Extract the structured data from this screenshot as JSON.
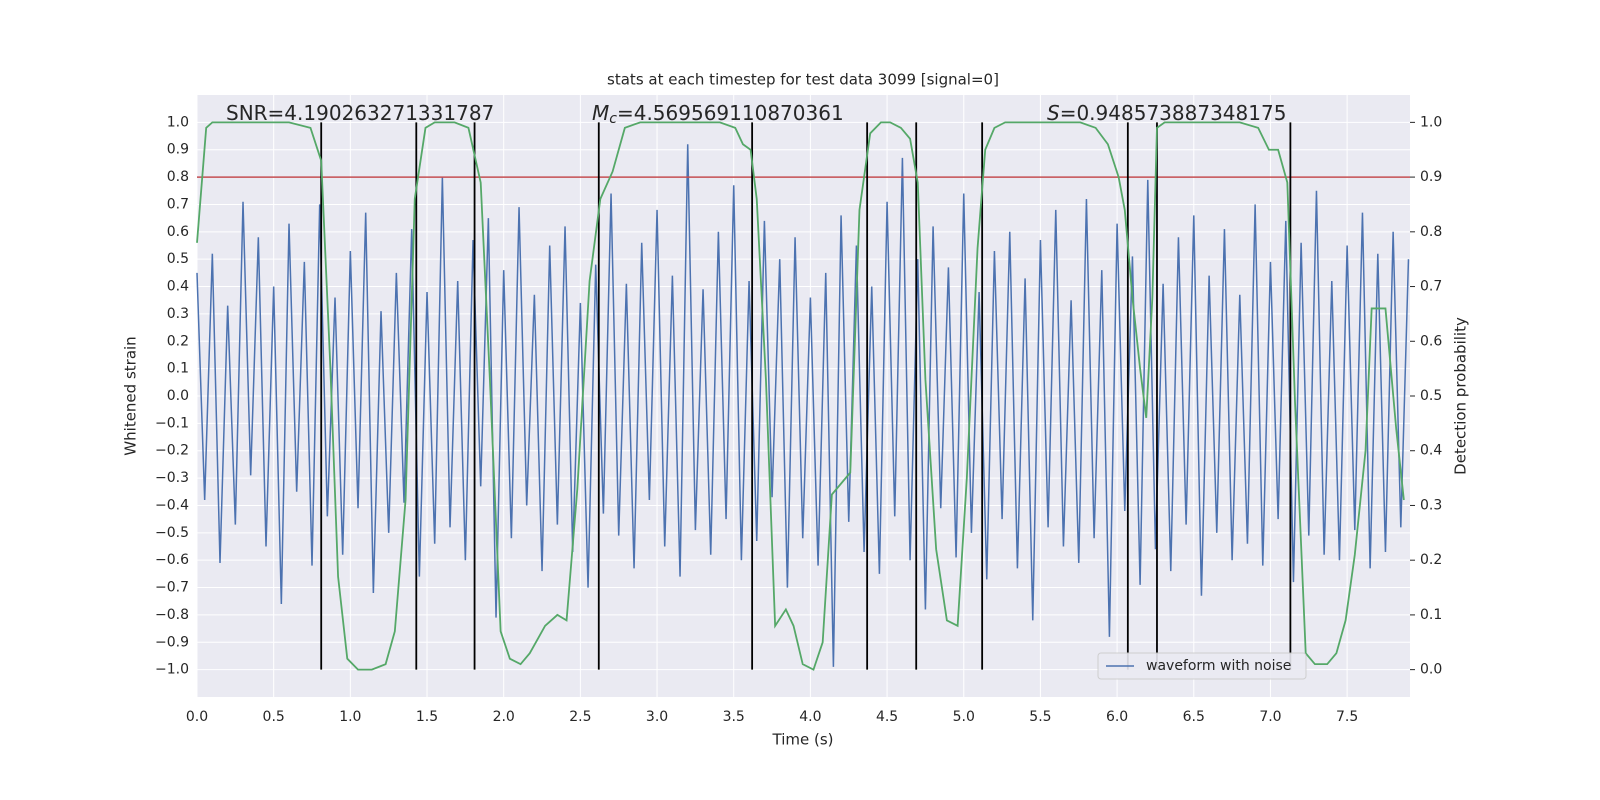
{
  "chart_data": {
    "type": "line",
    "title": "stats at each timestep for test data 3099 [signal=0]",
    "xlabel": "Time (s)",
    "ylabel": "Whitened strain",
    "y2label": "Detection probability",
    "xlim": [
      0,
      7.91
    ],
    "ylim": [
      -1.1,
      1.1
    ],
    "y2lim": [
      -0.05,
      1.05
    ],
    "xticks": [
      {
        "value": 0,
        "label": "0.0"
      },
      0.5,
      {
        "value": 1,
        "label": "1.0"
      },
      1.5,
      {
        "value": 2,
        "label": "2.0"
      },
      2.5,
      {
        "value": 3,
        "label": "3.0"
      },
      3.5,
      {
        "value": 4,
        "label": "4.0"
      },
      4.5,
      {
        "value": 5,
        "label": "5.0"
      },
      5.5,
      {
        "value": 6,
        "label": "6.0"
      },
      6.5,
      {
        "value": 7,
        "label": "7.0"
      },
      7.5
    ],
    "yticks": [
      {
        "value": -1,
        "label": "−1.0"
      },
      {
        "value": -0.9,
        "label": "−0.9"
      },
      {
        "value": -0.8,
        "label": "−0.8"
      },
      {
        "value": -0.7,
        "label": "−0.7"
      },
      {
        "value": -0.6,
        "label": "−0.6"
      },
      {
        "value": -0.5,
        "label": "−0.5"
      },
      {
        "value": -0.4,
        "label": "−0.4"
      },
      {
        "value": -0.3,
        "label": "−0.3"
      },
      {
        "value": -0.2,
        "label": "−0.2"
      },
      {
        "value": -0.1,
        "label": "−0.1"
      },
      {
        "value": 0,
        "label": "0.0"
      },
      0.1,
      0.2,
      0.3,
      0.4,
      0.5,
      0.6,
      0.7,
      0.8,
      0.9,
      {
        "value": 1,
        "label": "1.0"
      }
    ],
    "y2ticks": [
      {
        "value": 0,
        "label": "0.0"
      },
      0.1,
      0.2,
      0.3,
      0.4,
      0.5,
      0.6,
      0.7,
      0.8,
      0.9,
      {
        "value": 1,
        "label": "1.0"
      }
    ],
    "grid": true,
    "legend": "lower right",
    "annotations": [
      {
        "text": "SNR=4.190263271331787"
      },
      {
        "symbol": "M",
        "subscript": "c",
        "text": "=4.569569110870361"
      },
      {
        "symbol": "S",
        "text": "=0.948573887348175"
      }
    ],
    "hline": {
      "value": 0.8,
      "color": "#c44e52"
    },
    "vlines": {
      "x": [
        0.81,
        1.43,
        1.81,
        2.62,
        3.62,
        4.37,
        4.69,
        5.12,
        6.07,
        6.26,
        7.13
      ],
      "range": [
        -1,
        1
      ],
      "color": "#000000"
    },
    "series": [
      {
        "name": "waveform with noise",
        "color": "#4c72b0",
        "x": [
          0,
          0.05,
          0.1,
          0.15,
          0.2,
          0.25,
          0.3,
          0.35,
          0.4,
          0.45,
          0.5,
          0.55,
          0.6,
          0.65,
          0.7,
          0.75,
          0.8,
          0.85,
          0.9,
          0.95,
          1,
          1.05,
          1.1,
          1.15,
          1.2,
          1.25,
          1.3,
          1.35,
          1.4,
          1.45,
          1.5,
          1.55,
          1.6,
          1.65,
          1.7,
          1.75,
          1.8,
          1.85,
          1.9,
          1.95,
          2,
          2.05,
          2.1,
          2.15,
          2.2,
          2.25,
          2.3,
          2.35,
          2.4,
          2.45,
          2.5,
          2.55,
          2.6,
          2.65,
          2.7,
          2.75,
          2.8,
          2.85,
          2.9,
          2.95,
          3,
          3.05,
          3.1,
          3.15,
          3.2,
          3.25,
          3.3,
          3.35,
          3.4,
          3.45,
          3.5,
          3.55,
          3.6,
          3.65,
          3.7,
          3.75,
          3.8,
          3.85,
          3.9,
          3.95,
          4,
          4.05,
          4.1,
          4.15,
          4.2,
          4.25,
          4.3,
          4.35,
          4.4,
          4.45,
          4.5,
          4.55,
          4.6,
          4.65,
          4.7,
          4.75,
          4.8,
          4.85,
          4.9,
          4.95,
          5,
          5.05,
          5.1,
          5.15,
          5.2,
          5.25,
          5.3,
          5.35,
          5.4,
          5.45,
          5.5,
          5.55,
          5.6,
          5.65,
          5.7,
          5.75,
          5.8,
          5.85,
          5.9,
          5.95,
          6,
          6.05,
          6.1,
          6.15,
          6.2,
          6.25,
          6.3,
          6.35,
          6.4,
          6.45,
          6.5,
          6.55,
          6.6,
          6.65,
          6.7,
          6.75,
          6.8,
          6.85,
          6.9,
          6.95,
          7,
          7.05,
          7.1,
          7.15,
          7.2,
          7.25,
          7.3,
          7.35,
          7.4,
          7.45,
          7.5,
          7.55,
          7.6,
          7.65,
          7.7,
          7.75,
          7.8,
          7.85,
          7.9
        ],
        "values": [
          0.45,
          -0.38,
          0.52,
          -0.61,
          0.33,
          -0.47,
          0.71,
          -0.29,
          0.58,
          -0.55,
          0.4,
          -0.76,
          0.63,
          -0.35,
          0.49,
          -0.62,
          0.7,
          -0.44,
          0.36,
          -0.58,
          0.53,
          -0.41,
          0.67,
          -0.72,
          0.31,
          -0.5,
          0.45,
          -0.39,
          0.61,
          -0.66,
          0.38,
          -0.54,
          0.8,
          -0.48,
          0.42,
          -0.6,
          0.57,
          -0.33,
          0.65,
          -0.81,
          0.46,
          -0.52,
          0.69,
          -0.4,
          0.37,
          -0.64,
          0.55,
          -0.47,
          0.62,
          -0.57,
          0.34,
          -0.7,
          0.48,
          -0.43,
          0.74,
          -0.51,
          0.41,
          -0.63,
          0.56,
          -0.38,
          0.68,
          -0.55,
          0.44,
          -0.66,
          0.92,
          -0.49,
          0.39,
          -0.58,
          0.6,
          -0.45,
          0.77,
          -0.6,
          0.42,
          -0.53,
          0.64,
          -0.37,
          0.5,
          -0.7,
          0.58,
          -0.52,
          0.36,
          -0.62,
          0.45,
          -0.99,
          0.66,
          -0.46,
          0.55,
          -0.57,
          0.4,
          -0.65,
          0.71,
          -0.44,
          0.87,
          -0.6,
          0.5,
          -0.78,
          0.62,
          -0.41,
          0.47,
          -0.59,
          0.74,
          -0.5,
          0.38,
          -0.67,
          0.53,
          -0.45,
          0.6,
          -0.63,
          0.43,
          -0.82,
          0.57,
          -0.48,
          0.68,
          -0.55,
          0.35,
          -0.61,
          0.72,
          -0.52,
          0.46,
          -0.88,
          0.63,
          -0.42,
          0.51,
          -0.69,
          0.79,
          -0.56,
          0.41,
          -0.64,
          0.58,
          -0.47,
          0.66,
          -0.73,
          0.44,
          -0.5,
          0.61,
          -0.6,
          0.37,
          -0.54,
          0.7,
          -0.62,
          0.49,
          -0.45,
          0.64,
          -0.68,
          0.56,
          -0.51,
          0.75,
          -0.58,
          0.42,
          -0.6,
          0.55,
          -0.49,
          0.67,
          -0.63,
          0.52,
          -0.57,
          0.6,
          -0.48,
          0.5
        ]
      },
      {
        "color": "#55a868",
        "axis": "y2",
        "x": [
          0,
          0.06,
          0.1,
          0.6,
          0.74,
          0.81,
          0.87,
          0.92,
          0.98,
          1.05,
          1.14,
          1.23,
          1.29,
          1.36,
          1.42,
          1.49,
          1.55,
          1.68,
          1.77,
          1.85,
          1.91,
          1.98,
          2.04,
          2.11,
          2.17,
          2.27,
          2.35,
          2.41,
          2.48,
          2.56,
          2.63,
          2.71,
          2.79,
          2.89,
          3.41,
          3.51,
          3.56,
          3.61,
          3.65,
          3.71,
          3.77,
          3.84,
          3.89,
          3.95,
          4.02,
          4.08,
          4.14,
          4.26,
          4.32,
          4.39,
          4.46,
          4.52,
          4.59,
          4.65,
          4.7,
          4.75,
          4.82,
          4.89,
          4.96,
          5.02,
          5.09,
          5.14,
          5.2,
          5.27,
          5.76,
          5.86,
          5.94,
          6.01,
          6.05,
          6.1,
          6.15,
          6.19,
          6.23,
          6.26,
          6.31,
          6.8,
          6.92,
          6.99,
          7.05,
          7.11,
          7.16,
          7.23,
          7.29,
          7.37,
          7.43,
          7.49,
          7.55,
          7.62,
          7.66,
          7.75,
          7.82,
          7.87
        ],
        "values": [
          0.78,
          0.99,
          1,
          1,
          0.99,
          0.93,
          0.55,
          0.17,
          0.02,
          0,
          0,
          0.01,
          0.07,
          0.31,
          0.86,
          0.99,
          1,
          1,
          0.99,
          0.89,
          0.53,
          0.07,
          0.02,
          0.01,
          0.03,
          0.08,
          0.1,
          0.09,
          0.33,
          0.71,
          0.86,
          0.91,
          0.99,
          1,
          1,
          0.99,
          0.96,
          0.95,
          0.86,
          0.53,
          0.08,
          0.11,
          0.08,
          0.01,
          0,
          0.05,
          0.32,
          0.36,
          0.84,
          0.98,
          1,
          1,
          0.99,
          0.97,
          0.89,
          0.53,
          0.22,
          0.09,
          0.08,
          0.35,
          0.77,
          0.95,
          0.99,
          1,
          1,
          0.99,
          0.96,
          0.9,
          0.84,
          0.68,
          0.55,
          0.46,
          0.68,
          0.99,
          1,
          1,
          0.99,
          0.95,
          0.95,
          0.89,
          0.49,
          0.03,
          0.01,
          0.01,
          0.03,
          0.09,
          0.21,
          0.4,
          0.66,
          0.66,
          0.44,
          0.31
        ]
      }
    ]
  }
}
